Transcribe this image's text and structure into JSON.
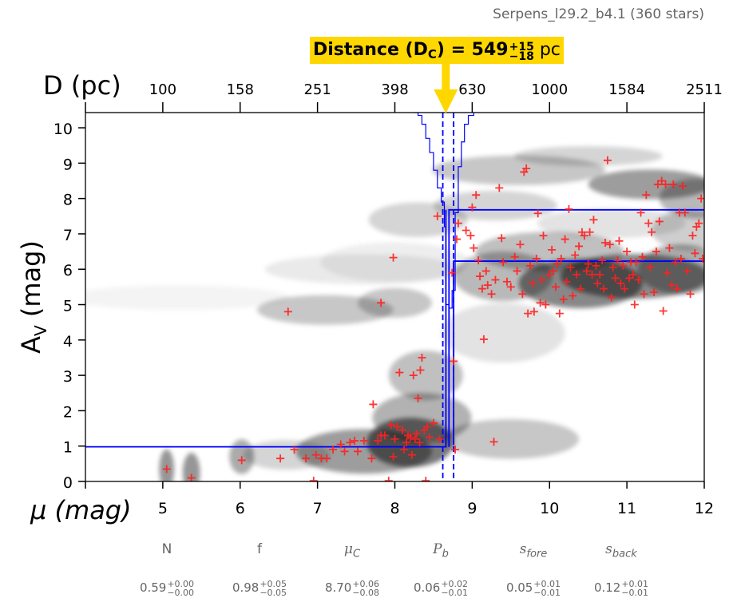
{
  "header": {
    "subtitle": "Serpens_l29.2_b4.1 (360 stars)",
    "banner_prefix": "Distance (D",
    "banner_sub": "C",
    "banner_mid": ") = 549",
    "banner_err_plus": "+15",
    "banner_err_minus": "−18",
    "banner_unit": "pc"
  },
  "colors": {
    "banner_bg": "#FFD700",
    "arrow": "#FFD700",
    "points": "#FF2020",
    "lines": "#0000FF",
    "density": "#000000",
    "param_text": "#666666"
  },
  "params": [
    {
      "name": "N",
      "italic": false,
      "sub": "",
      "value": "0.59",
      "err_plus": "+0.00",
      "err_minus": "−0.00"
    },
    {
      "name": "f",
      "italic": false,
      "sub": "",
      "value": "0.98",
      "err_plus": "+0.05",
      "err_minus": "−0.05"
    },
    {
      "name": "μ",
      "italic": true,
      "sub": "C",
      "value": "8.70",
      "err_plus": "+0.06",
      "err_minus": "−0.08"
    },
    {
      "name": "P",
      "italic": true,
      "sub": "b",
      "value": "0.06",
      "err_plus": "+0.02",
      "err_minus": "−0.01"
    },
    {
      "name": "s",
      "italic": true,
      "sub": "fore",
      "value": "0.05",
      "err_plus": "+0.01",
      "err_minus": "−0.01"
    },
    {
      "name": "s",
      "italic": true,
      "sub": "back",
      "value": "0.12",
      "err_plus": "+0.01",
      "err_minus": "−0.01"
    }
  ],
  "chart_data": {
    "type": "scatter",
    "title": "Distance (DC) = 549 +15/−18 pc",
    "xlabel": "μ (mag)",
    "ylabel": "AV (mag)",
    "top_xlabel": "D (pc)",
    "xlim": [
      4,
      12
    ],
    "ylim": [
      0,
      10.43
    ],
    "x_ticks": [
      4,
      5,
      6,
      7,
      8,
      9,
      10,
      11,
      12
    ],
    "x_tick_labels": [
      "",
      "5",
      "6",
      "7",
      "8",
      "9",
      "10",
      "11",
      "12"
    ],
    "y_ticks": [
      0,
      1,
      2,
      3,
      4,
      5,
      6,
      7,
      8,
      9,
      10
    ],
    "y_tick_labels": [
      "0",
      "1",
      "2",
      "3",
      "4",
      "5",
      "6",
      "7",
      "8",
      "9",
      "10"
    ],
    "top_ticks_mu": [
      4,
      5,
      6,
      7,
      8,
      9,
      10,
      11,
      12
    ],
    "top_tick_labels": [
      "",
      "100",
      "158",
      "251",
      "398",
      "630",
      "1000",
      "1584",
      "2511"
    ],
    "distance_pc": 549,
    "distance_err_plus": 15,
    "distance_err_minus": 18,
    "mu_c": 8.7,
    "mu_c_dashed": [
      8.62,
      8.76
    ],
    "model_line": {
      "foreground_av": 0.98,
      "background_av_upper": 7.68,
      "background_av_lower": 6.23,
      "mu_break": 8.72
    },
    "distance_pdf_steps": [
      [
        8.25,
        10.43
      ],
      [
        8.3,
        10.35
      ],
      [
        8.35,
        10.1
      ],
      [
        8.4,
        9.7
      ],
      [
        8.45,
        9.3
      ],
      [
        8.5,
        8.8
      ],
      [
        8.55,
        8.3
      ],
      [
        8.6,
        7.9
      ],
      [
        8.64,
        7.2
      ],
      [
        8.66,
        5.0
      ],
      [
        8.7,
        4.9
      ],
      [
        8.74,
        5.4
      ],
      [
        8.78,
        7.6
      ],
      [
        8.82,
        8.9
      ],
      [
        8.86,
        9.6
      ],
      [
        8.9,
        10.1
      ],
      [
        8.95,
        10.35
      ],
      [
        9.02,
        10.43
      ]
    ],
    "density_blobs": [
      {
        "mu": 5.05,
        "av": 0.35,
        "smu": 0.06,
        "sav": 0.4,
        "w": 0.75
      },
      {
        "mu": 5.37,
        "av": 0.25,
        "smu": 0.07,
        "sav": 0.4,
        "w": 0.75
      },
      {
        "mu": 6.02,
        "av": 0.7,
        "smu": 0.1,
        "sav": 0.35,
        "w": 0.6
      },
      {
        "mu": 6.6,
        "av": 0.75,
        "smu": 0.35,
        "sav": 0.3,
        "w": 0.3
      },
      {
        "mu": 7.6,
        "av": 0.85,
        "smu": 0.55,
        "sav": 0.45,
        "w": 0.7
      },
      {
        "mu": 8.2,
        "av": 1.1,
        "smu": 0.35,
        "sav": 0.5,
        "w": 0.95
      },
      {
        "mu": 8.35,
        "av": 1.8,
        "smu": 0.4,
        "sav": 0.5,
        "w": 0.55
      },
      {
        "mu": 8.4,
        "av": 3.0,
        "smu": 0.3,
        "sav": 0.5,
        "w": 0.45
      },
      {
        "mu": 7.1,
        "av": 4.85,
        "smu": 0.55,
        "sav": 0.3,
        "w": 0.4
      },
      {
        "mu": 8.0,
        "av": 5.05,
        "smu": 0.3,
        "sav": 0.3,
        "w": 0.4
      },
      {
        "mu": 5.2,
        "av": 5.2,
        "smu": 0.9,
        "sav": 0.25,
        "w": 0.08
      },
      {
        "mu": 7.6,
        "av": 6.0,
        "smu": 0.8,
        "sav": 0.3,
        "w": 0.15
      },
      {
        "mu": 8.3,
        "av": 7.4,
        "smu": 0.4,
        "sav": 0.35,
        "w": 0.3
      },
      {
        "mu": 8.0,
        "av": 6.2,
        "smu": 0.6,
        "sav": 0.4,
        "w": 0.12
      },
      {
        "mu": 9.4,
        "av": 4.2,
        "smu": 0.5,
        "sav": 0.6,
        "w": 0.2
      },
      {
        "mu": 9.5,
        "av": 1.2,
        "smu": 0.55,
        "sav": 0.4,
        "w": 0.4
      },
      {
        "mu": 9.4,
        "av": 5.8,
        "smu": 0.4,
        "sav": 0.5,
        "w": 0.5
      },
      {
        "mu": 10.4,
        "av": 5.6,
        "smu": 0.5,
        "sav": 0.5,
        "w": 0.85
      },
      {
        "mu": 11.1,
        "av": 5.8,
        "smu": 0.6,
        "sav": 0.45,
        "w": 0.85
      },
      {
        "mu": 11.7,
        "av": 6.0,
        "smu": 0.35,
        "sav": 0.5,
        "w": 0.6
      },
      {
        "mu": 10.0,
        "av": 6.5,
        "smu": 0.6,
        "sav": 0.4,
        "w": 0.45
      },
      {
        "mu": 9.6,
        "av": 8.8,
        "smu": 0.7,
        "sav": 0.3,
        "w": 0.4
      },
      {
        "mu": 10.5,
        "av": 9.2,
        "smu": 0.6,
        "sav": 0.2,
        "w": 0.3
      },
      {
        "mu": 11.3,
        "av": 8.4,
        "smu": 0.5,
        "sav": 0.3,
        "w": 0.7
      },
      {
        "mu": 11.9,
        "av": 8.0,
        "smu": 0.3,
        "sav": 0.4,
        "w": 0.5
      },
      {
        "mu": 9.3,
        "av": 7.8,
        "smu": 0.5,
        "sav": 0.3,
        "w": 0.3
      },
      {
        "mu": 10.8,
        "av": 7.3,
        "smu": 0.6,
        "sav": 0.3,
        "w": 0.2
      },
      {
        "mu": 11.8,
        "av": 7.1,
        "smu": 0.3,
        "sav": 0.4,
        "w": 0.35
      }
    ],
    "points": [
      [
        5.05,
        0.35
      ],
      [
        5.37,
        0.1
      ],
      [
        6.02,
        0.6
      ],
      [
        6.52,
        0.65
      ],
      [
        6.7,
        0.9
      ],
      [
        6.62,
        4.8
      ],
      [
        7.82,
        5.05
      ],
      [
        7.98,
        6.33
      ],
      [
        6.95,
        0.02
      ],
      [
        6.85,
        0.65
      ],
      [
        6.98,
        0.75
      ],
      [
        7.05,
        0.65
      ],
      [
        7.12,
        0.65
      ],
      [
        7.2,
        0.9
      ],
      [
        7.3,
        1.05
      ],
      [
        7.35,
        0.85
      ],
      [
        7.42,
        1.1
      ],
      [
        7.48,
        1.15
      ],
      [
        7.52,
        0.85
      ],
      [
        7.6,
        1.15
      ],
      [
        7.7,
        0.65
      ],
      [
        7.72,
        2.18
      ],
      [
        7.78,
        1.15
      ],
      [
        7.82,
        1.3
      ],
      [
        7.87,
        1.3
      ],
      [
        7.92,
        0.02
      ],
      [
        7.95,
        1.6
      ],
      [
        7.98,
        0.7
      ],
      [
        8.0,
        1.2
      ],
      [
        8.03,
        1.55
      ],
      [
        8.06,
        3.08
      ],
      [
        8.1,
        1.45
      ],
      [
        8.12,
        0.9
      ],
      [
        8.15,
        1.1
      ],
      [
        8.17,
        1.3
      ],
      [
        8.2,
        1.25
      ],
      [
        8.22,
        0.75
      ],
      [
        8.24,
        3.0
      ],
      [
        8.26,
        1.2
      ],
      [
        8.28,
        1.35
      ],
      [
        8.3,
        2.35
      ],
      [
        8.32,
        1.1
      ],
      [
        8.33,
        3.15
      ],
      [
        8.35,
        3.5
      ],
      [
        8.38,
        1.45
      ],
      [
        8.4,
        0.02
      ],
      [
        8.42,
        1.55
      ],
      [
        8.45,
        1.25
      ],
      [
        8.5,
        1.65
      ],
      [
        8.55,
        7.5
      ],
      [
        8.58,
        1.2
      ],
      [
        8.74,
        5.9
      ],
      [
        8.76,
        3.4
      ],
      [
        8.78,
        0.9
      ],
      [
        8.8,
        6.85
      ],
      [
        8.82,
        7.3
      ],
      [
        8.92,
        7.1
      ],
      [
        8.98,
        6.95
      ],
      [
        9.0,
        7.75
      ],
      [
        9.02,
        6.6
      ],
      [
        9.05,
        8.1
      ],
      [
        9.08,
        6.25
      ],
      [
        9.1,
        5.8
      ],
      [
        9.13,
        5.45
      ],
      [
        9.15,
        4.02
      ],
      [
        9.18,
        5.95
      ],
      [
        9.2,
        5.55
      ],
      [
        9.25,
        5.3
      ],
      [
        9.28,
        1.12
      ],
      [
        9.3,
        5.7
      ],
      [
        9.35,
        8.3
      ],
      [
        9.38,
        6.88
      ],
      [
        9.4,
        6.2
      ],
      [
        9.45,
        5.65
      ],
      [
        9.5,
        5.5
      ],
      [
        9.55,
        6.35
      ],
      [
        9.58,
        5.95
      ],
      [
        9.62,
        6.7
      ],
      [
        9.65,
        5.3
      ],
      [
        9.67,
        8.75
      ],
      [
        9.7,
        8.85
      ],
      [
        9.72,
        4.75
      ],
      [
        9.75,
        6.1
      ],
      [
        9.78,
        5.6
      ],
      [
        9.8,
        4.8
      ],
      [
        9.83,
        6.3
      ],
      [
        9.85,
        7.58
      ],
      [
        9.88,
        5.05
      ],
      [
        9.9,
        5.7
      ],
      [
        9.92,
        6.95
      ],
      [
        9.95,
        5.0
      ],
      [
        10.0,
        5.85
      ],
      [
        10.03,
        6.55
      ],
      [
        10.05,
        5.95
      ],
      [
        10.08,
        5.5
      ],
      [
        10.1,
        6.15
      ],
      [
        10.13,
        4.75
      ],
      [
        10.15,
        6.3
      ],
      [
        10.18,
        5.15
      ],
      [
        10.2,
        6.85
      ],
      [
        10.22,
        5.65
      ],
      [
        10.25,
        7.7
      ],
      [
        10.27,
        6.05
      ],
      [
        10.3,
        5.25
      ],
      [
        10.33,
        6.4
      ],
      [
        10.35,
        5.85
      ],
      [
        10.38,
        6.65
      ],
      [
        10.4,
        5.45
      ],
      [
        10.42,
        7.05
      ],
      [
        10.45,
        6.95
      ],
      [
        10.48,
        5.95
      ],
      [
        10.5,
        6.15
      ],
      [
        10.52,
        7.05
      ],
      [
        10.55,
        5.85
      ],
      [
        10.57,
        7.4
      ],
      [
        10.6,
        6.1
      ],
      [
        10.62,
        5.6
      ],
      [
        10.65,
        5.85
      ],
      [
        10.68,
        6.25
      ],
      [
        10.7,
        5.45
      ],
      [
        10.72,
        6.75
      ],
      [
        10.75,
        9.08
      ],
      [
        10.78,
        6.7
      ],
      [
        10.8,
        5.2
      ],
      [
        10.82,
        6.05
      ],
      [
        10.85,
        5.75
      ],
      [
        10.88,
        6.25
      ],
      [
        10.9,
        6.8
      ],
      [
        10.92,
        5.6
      ],
      [
        10.95,
        6.1
      ],
      [
        10.97,
        5.45
      ],
      [
        11.0,
        6.5
      ],
      [
        11.03,
        5.75
      ],
      [
        11.05,
        6.2
      ],
      [
        11.08,
        5.85
      ],
      [
        11.1,
        5.0
      ],
      [
        11.12,
        6.2
      ],
      [
        11.15,
        5.7
      ],
      [
        11.18,
        7.6
      ],
      [
        11.2,
        6.35
      ],
      [
        11.22,
        5.3
      ],
      [
        11.25,
        8.1
      ],
      [
        11.28,
        7.3
      ],
      [
        11.3,
        6.05
      ],
      [
        11.32,
        7.05
      ],
      [
        11.35,
        5.35
      ],
      [
        11.38,
        6.5
      ],
      [
        11.4,
        8.4
      ],
      [
        11.42,
        7.35
      ],
      [
        11.45,
        8.5
      ],
      [
        11.47,
        4.82
      ],
      [
        11.5,
        8.4
      ],
      [
        11.52,
        5.9
      ],
      [
        11.55,
        6.6
      ],
      [
        11.58,
        5.55
      ],
      [
        11.6,
        8.4
      ],
      [
        11.63,
        6.2
      ],
      [
        11.65,
        5.45
      ],
      [
        11.68,
        7.6
      ],
      [
        11.7,
        6.3
      ],
      [
        11.72,
        8.35
      ],
      [
        11.75,
        7.6
      ],
      [
        11.78,
        5.95
      ],
      [
        11.82,
        5.3
      ],
      [
        11.85,
        6.95
      ],
      [
        11.88,
        6.45
      ],
      [
        11.9,
        7.2
      ],
      [
        11.93,
        7.3
      ],
      [
        11.96,
        8.0
      ],
      [
        11.98,
        6.3
      ]
    ]
  }
}
